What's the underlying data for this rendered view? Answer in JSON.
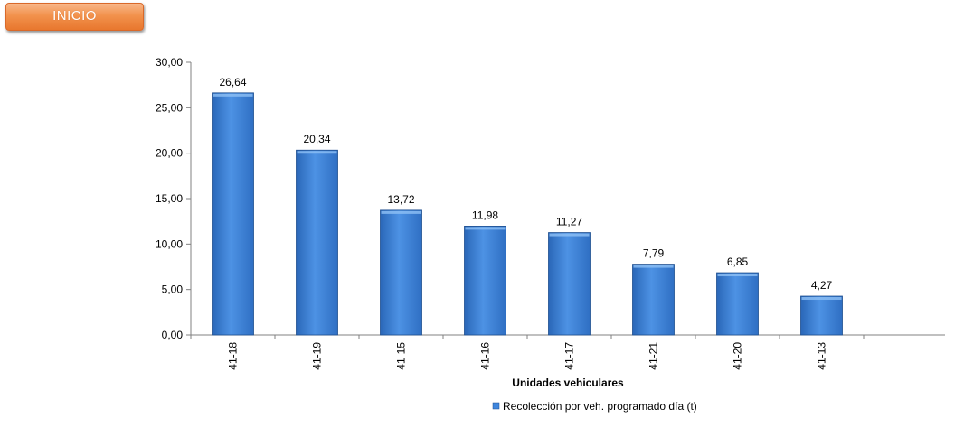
{
  "nav": {
    "inicio_label": "INICIO"
  },
  "colors": {
    "bar_light": "#6aa6ea",
    "bar_mid": "#3f86dd",
    "bar_dark": "#2a67b8",
    "bar_edge": "#1f4f8f",
    "button": "#f2924d",
    "axis": "#808080"
  },
  "chart_data": {
    "type": "bar",
    "categories": [
      "41-18",
      "41-19",
      "41-15",
      "41-16",
      "41-17",
      "41-21",
      "41-20",
      "41-13"
    ],
    "values": [
      26.64,
      20.34,
      13.72,
      11.98,
      11.27,
      7.79,
      6.85,
      4.27
    ],
    "value_labels": [
      "26,64",
      "20,34",
      "13,72",
      "11,98",
      "11,27",
      "7,79",
      "6,85",
      "4,27"
    ],
    "xlabel": "Unidades vehiculares",
    "ylabel": "",
    "ylim": [
      0,
      30
    ],
    "y_ticks": [
      0,
      5,
      10,
      15,
      20,
      25,
      30
    ],
    "y_tick_labels": [
      "0,00",
      "5,00",
      "10,00",
      "15,00",
      "20,00",
      "25,00",
      "30,00"
    ],
    "grid": false,
    "legend": {
      "position": "bottom",
      "entries": [
        "Recolección por veh. programado día (t)"
      ]
    },
    "series": [
      {
        "name": "Recolección por veh. programado día (t)",
        "values": [
          26.64,
          20.34,
          13.72,
          11.98,
          11.27,
          7.79,
          6.85,
          4.27
        ]
      }
    ]
  }
}
